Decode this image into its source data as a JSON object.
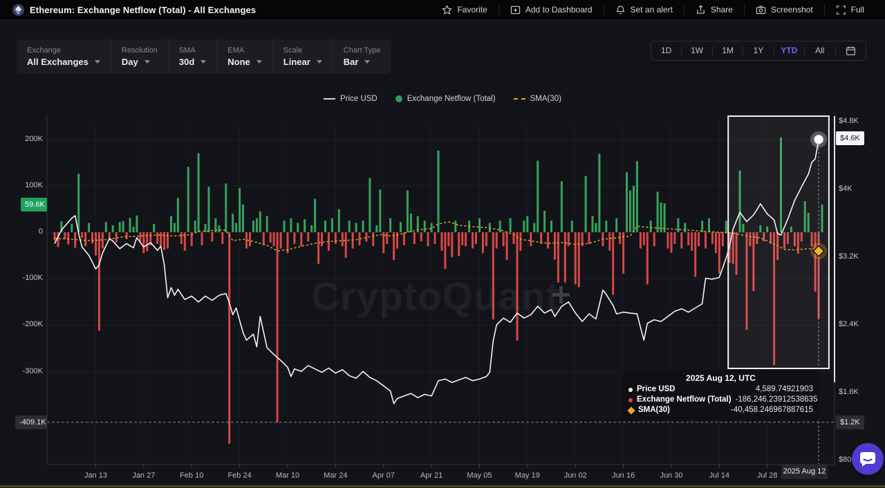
{
  "header": {
    "title": "Ethereum: Exchange Netflow (Total) - All Exchanges",
    "actions": [
      {
        "label": "Favorite",
        "icon": "star-icon"
      },
      {
        "label": "Add to Dashboard",
        "icon": "add-dashboard-icon"
      },
      {
        "label": "Set an alert",
        "icon": "bell-icon"
      },
      {
        "label": "Share",
        "icon": "share-icon"
      },
      {
        "label": "Screenshot",
        "icon": "camera-icon"
      },
      {
        "label": "Full",
        "icon": "fullscreen-icon"
      }
    ]
  },
  "controls": [
    {
      "label": "Exchange",
      "value": "All Exchanges"
    },
    {
      "label": "Resolution",
      "value": "Day"
    },
    {
      "label": "SMA",
      "value": "30d"
    },
    {
      "label": "EMA",
      "value": "None"
    },
    {
      "label": "Scale",
      "value": "Linear"
    },
    {
      "label": "Chart Type",
      "value": "Bar"
    }
  ],
  "range": {
    "buttons": [
      "1D",
      "1W",
      "1M",
      "1Y",
      "YTD",
      "All"
    ],
    "active": "YTD"
  },
  "legend": [
    {
      "label": "Price USD",
      "swatch": "line"
    },
    {
      "label": "Exchange Netflow (Total)",
      "swatch": "dot"
    },
    {
      "label": "SMA(30)",
      "swatch": "dash"
    }
  ],
  "watermark": "CryptoQuant",
  "tooltip": {
    "title": "2025 Aug 12, UTC",
    "rows": [
      {
        "label": "Price USD",
        "value": "4,589.74921903",
        "marker": "white-dot"
      },
      {
        "label": "Exchange Netflow (Total)",
        "value": "-186,246.23912538635",
        "marker": "red-dot"
      },
      {
        "label": "SMA(30)",
        "value": "-40,458.246967887615",
        "marker": "orange-diamond"
      }
    ]
  },
  "chart_data": {
    "type": "bar",
    "title": "Ethereum: Exchange Netflow (Total) - All Exchanges",
    "x_start_date": "2025-01-01",
    "x_end_date": "2025-08-13",
    "grid": true,
    "legend_position": "top-center",
    "colors": {
      "netflow_pos": "#36a35c",
      "netflow_neg": "#d74747",
      "sma": "#e0a42c",
      "price": "#f4f4f4",
      "accent_ytd": "#6d6ce6",
      "badge_green": "#1fa15e",
      "chat": "#4e3bd0"
    },
    "left_axis": {
      "label": "Exchange Netflow (Total), K",
      "ticks": [
        {
          "label": "200K",
          "v": 200
        },
        {
          "label": "100K",
          "v": 100
        },
        {
          "label": "0",
          "v": 0
        },
        {
          "label": "-100K",
          "v": -100
        },
        {
          "label": "-200K",
          "v": -200
        },
        {
          "label": "-300K",
          "v": -300
        }
      ],
      "last_badge": {
        "label": "59.6K",
        "v": 59.6
      },
      "min_marker": {
        "label": "-409.1K",
        "v": -409.1
      }
    },
    "right_axis": {
      "label": "Price USD",
      "ticks": [
        {
          "label": "$4.8K",
          "p": 4800
        },
        {
          "label": "$4K",
          "p": 4000
        },
        {
          "label": "$3.2K",
          "p": 3200
        },
        {
          "label": "$2.4K",
          "p": 2400
        },
        {
          "label": "$1.6K",
          "p": 1600
        },
        {
          "label": "$800",
          "p": 800
        }
      ],
      "last_badge": {
        "label": "$4.6K",
        "p": 4589.75
      },
      "min_badge": {
        "label": "$1.2K"
      }
    },
    "x_ticks": [
      {
        "label": "Jan 13",
        "day": 12
      },
      {
        "label": "Jan 27",
        "day": 26
      },
      {
        "label": "Feb 10",
        "day": 40
      },
      {
        "label": "Feb 24",
        "day": 54
      },
      {
        "label": "Mar 10",
        "day": 68
      },
      {
        "label": "Mar 24",
        "day": 82
      },
      {
        "label": "Apr 07",
        "day": 96
      },
      {
        "label": "Apr 21",
        "day": 110
      },
      {
        "label": "May 05",
        "day": 124
      },
      {
        "label": "May 19",
        "day": 138
      },
      {
        "label": "Jun 02",
        "day": 152
      },
      {
        "label": "Jun 16",
        "day": 166
      },
      {
        "label": "Jun 30",
        "day": 180
      },
      {
        "label": "Jul 14",
        "day": 194
      },
      {
        "label": "Jul 28",
        "day": 208
      }
    ],
    "crosshair": {
      "day": 223,
      "date_label": "2025 Aug 12",
      "price": 4589.74921903,
      "netflow": -186.246,
      "sma": -40.458
    },
    "selection_window": {
      "from_day": 197,
      "to_day": 226
    },
    "netflow_daily_k": [
      -18,
      -32,
      24,
      -15,
      -26,
      18,
      -34,
      126,
      -12,
      -30,
      20,
      -24,
      -50,
      -212,
      -35,
      22,
      -18,
      15,
      -22,
      22,
      24,
      -15,
      31,
      12,
      36,
      -20,
      -45,
      -41,
      -28,
      18,
      -25,
      -30,
      -38,
      -35,
      35,
      20,
      74,
      -25,
      -40,
      141,
      -30,
      25,
      170,
      -28,
      18,
      98,
      -20,
      30,
      15,
      -25,
      105,
      -455,
      40,
      20,
      95,
      60,
      -35,
      -30,
      25,
      30,
      45,
      -28,
      35,
      -22,
      -30,
      -409.1,
      -35,
      25,
      -45,
      30,
      -25,
      20,
      -30,
      28,
      -20,
      15,
      72,
      -68,
      -30,
      25,
      -40,
      30,
      -25,
      50,
      -30,
      -55,
      25,
      -35,
      20,
      -28,
      25,
      -20,
      117,
      -30,
      15,
      92,
      -45,
      -25,
      30,
      -60,
      -35,
      22,
      -28,
      90,
      40,
      -25,
      35,
      -20,
      25,
      -30,
      20,
      -25,
      176,
      -40,
      -79,
      -30,
      -54,
      25,
      -51,
      -28,
      -30,
      25,
      -35,
      -25,
      30,
      -45,
      -30,
      20,
      -188,
      -35,
      25,
      -30,
      -60,
      30,
      -25,
      -233,
      -40,
      25,
      35,
      -30,
      20,
      154,
      -25,
      46,
      -35,
      25,
      -59,
      -108,
      110,
      -108,
      -30,
      25,
      -112,
      -118,
      -30,
      121,
      -25,
      35,
      20,
      169,
      -30,
      25,
      -40,
      -135,
      30,
      -25,
      -89,
      129,
      90,
      100,
      153,
      -35,
      -28,
      -112,
      25,
      -30,
      87,
      64,
      62,
      -35,
      -44,
      -25,
      30,
      -35,
      20,
      -28,
      -40,
      -96,
      -30,
      25,
      -35,
      30,
      -25,
      -45,
      -89,
      -30,
      25,
      -66,
      -68,
      -92,
      133,
      18,
      -210,
      -30,
      -127,
      -25,
      15,
      -20,
      12,
      -25,
      -286,
      -60,
      204,
      -35,
      -25,
      12,
      -30,
      -46,
      -20,
      67,
      42,
      -30,
      -128,
      -186.2,
      59.6
    ],
    "price_usd_points": [
      [
        0,
        3360
      ],
      [
        2,
        3520
      ],
      [
        5,
        3660
      ],
      [
        6,
        3690
      ],
      [
        7,
        3480
      ],
      [
        8,
        3320
      ],
      [
        10,
        3220
      ],
      [
        12,
        3060
      ],
      [
        13,
        3110
      ],
      [
        14,
        3250
      ],
      [
        16,
        3420
      ],
      [
        17,
        3390
      ],
      [
        19,
        3300
      ],
      [
        21,
        3360
      ],
      [
        23,
        3310
      ],
      [
        24,
        3430
      ],
      [
        26,
        3320
      ],
      [
        28,
        3370
      ],
      [
        30,
        3280
      ],
      [
        31,
        3330
      ],
      [
        32,
        3110
      ],
      [
        33,
        2720
      ],
      [
        34,
        2840
      ],
      [
        35,
        2750
      ],
      [
        36,
        2820
      ],
      [
        38,
        2700
      ],
      [
        40,
        2740
      ],
      [
        42,
        2670
      ],
      [
        44,
        2740
      ],
      [
        46,
        2690
      ],
      [
        48,
        2750
      ],
      [
        50,
        2770
      ],
      [
        51,
        2660
      ],
      [
        52,
        2520
      ],
      [
        53,
        2600
      ],
      [
        55,
        2310
      ],
      [
        56,
        2220
      ],
      [
        58,
        2290
      ],
      [
        59,
        2140
      ],
      [
        60,
        2500
      ],
      [
        62,
        2130
      ],
      [
        64,
        2050
      ],
      [
        66,
        1980
      ],
      [
        68,
        1900
      ],
      [
        69,
        1790
      ],
      [
        70,
        1880
      ],
      [
        72,
        1850
      ],
      [
        74,
        1920
      ],
      [
        76,
        1880
      ],
      [
        78,
        1840
      ],
      [
        80,
        1890
      ],
      [
        82,
        1830
      ],
      [
        84,
        1870
      ],
      [
        86,
        1800
      ],
      [
        88,
        1770
      ],
      [
        90,
        1850
      ],
      [
        92,
        1780
      ],
      [
        94,
        1740
      ],
      [
        96,
        1680
      ],
      [
        98,
        1620
      ],
      [
        99,
        1470
      ],
      [
        100,
        1530
      ],
      [
        102,
        1560
      ],
      [
        104,
        1590
      ],
      [
        106,
        1540
      ],
      [
        108,
        1580
      ],
      [
        110,
        1560
      ],
      [
        112,
        1740
      ],
      [
        114,
        1760
      ],
      [
        116,
        1720
      ],
      [
        118,
        1750
      ],
      [
        120,
        1780
      ],
      [
        122,
        1740
      ],
      [
        124,
        1760
      ],
      [
        126,
        1790
      ],
      [
        127,
        1840
      ],
      [
        128,
        2210
      ],
      [
        129,
        2400
      ],
      [
        131,
        2480
      ],
      [
        133,
        2430
      ],
      [
        135,
        2540
      ],
      [
        137,
        2480
      ],
      [
        139,
        2520
      ],
      [
        141,
        2620
      ],
      [
        143,
        2540
      ],
      [
        145,
        2580
      ],
      [
        146,
        2500
      ],
      [
        148,
        2620
      ],
      [
        150,
        2670
      ],
      [
        152,
        2540
      ],
      [
        154,
        2440
      ],
      [
        156,
        2530
      ],
      [
        158,
        2470
      ],
      [
        160,
        2810
      ],
      [
        161,
        2760
      ],
      [
        163,
        2630
      ],
      [
        164,
        2530
      ],
      [
        166,
        2550
      ],
      [
        168,
        2540
      ],
      [
        170,
        2530
      ],
      [
        171,
        2370
      ],
      [
        172,
        2220
      ],
      [
        173,
        2420
      ],
      [
        175,
        2460
      ],
      [
        177,
        2440
      ],
      [
        179,
        2500
      ],
      [
        181,
        2560
      ],
      [
        183,
        2590
      ],
      [
        185,
        2550
      ],
      [
        187,
        2600
      ],
      [
        189,
        2650
      ],
      [
        190,
        2950
      ],
      [
        192,
        2940
      ],
      [
        194,
        2960
      ],
      [
        196,
        3190
      ],
      [
        197,
        3330
      ],
      [
        198,
        3530
      ],
      [
        200,
        3730
      ],
      [
        202,
        3620
      ],
      [
        204,
        3700
      ],
      [
        205,
        3760
      ],
      [
        206,
        3830
      ],
      [
        208,
        3710
      ],
      [
        210,
        3640
      ],
      [
        211,
        3480
      ],
      [
        212,
        3460
      ],
      [
        214,
        3650
      ],
      [
        216,
        3870
      ],
      [
        218,
        4030
      ],
      [
        220,
        4180
      ],
      [
        221,
        4320
      ],
      [
        222,
        4360
      ],
      [
        223,
        4589.75
      ]
    ],
    "sma30_points_k": [
      [
        0,
        -13
      ],
      [
        5,
        -15
      ],
      [
        10,
        -18
      ],
      [
        15,
        -16
      ],
      [
        20,
        -10
      ],
      [
        25,
        -8
      ],
      [
        30,
        -6
      ],
      [
        35,
        -8
      ],
      [
        40,
        -5
      ],
      [
        42,
        2
      ],
      [
        45,
        3
      ],
      [
        48,
        5
      ],
      [
        50,
        4
      ],
      [
        52,
        -18
      ],
      [
        55,
        -15
      ],
      [
        58,
        -20
      ],
      [
        62,
        -28
      ],
      [
        65,
        -40
      ],
      [
        68,
        -38
      ],
      [
        72,
        -30
      ],
      [
        76,
        -24
      ],
      [
        80,
        -20
      ],
      [
        84,
        -18
      ],
      [
        88,
        -16
      ],
      [
        92,
        -10
      ],
      [
        95,
        -5
      ],
      [
        98,
        -8
      ],
      [
        100,
        -6
      ],
      [
        103,
        0
      ],
      [
        106,
        5
      ],
      [
        110,
        8
      ],
      [
        112,
        18
      ],
      [
        115,
        22
      ],
      [
        118,
        15
      ],
      [
        122,
        12
      ],
      [
        126,
        10
      ],
      [
        130,
        5
      ],
      [
        134,
        -5
      ],
      [
        136,
        -15
      ],
      [
        140,
        -20
      ],
      [
        144,
        -24
      ],
      [
        148,
        -22
      ],
      [
        152,
        -26
      ],
      [
        156,
        -24
      ],
      [
        160,
        -15
      ],
      [
        164,
        -12
      ],
      [
        168,
        -8
      ],
      [
        170,
        13
      ],
      [
        174,
        10
      ],
      [
        178,
        8
      ],
      [
        182,
        6
      ],
      [
        186,
        4
      ],
      [
        190,
        2
      ],
      [
        194,
        0
      ],
      [
        198,
        -2
      ],
      [
        202,
        -8
      ],
      [
        206,
        -12
      ],
      [
        210,
        -25
      ],
      [
        213,
        -37
      ],
      [
        216,
        -38
      ],
      [
        219,
        -36
      ],
      [
        221,
        -35
      ],
      [
        223,
        -40.5
      ]
    ]
  }
}
